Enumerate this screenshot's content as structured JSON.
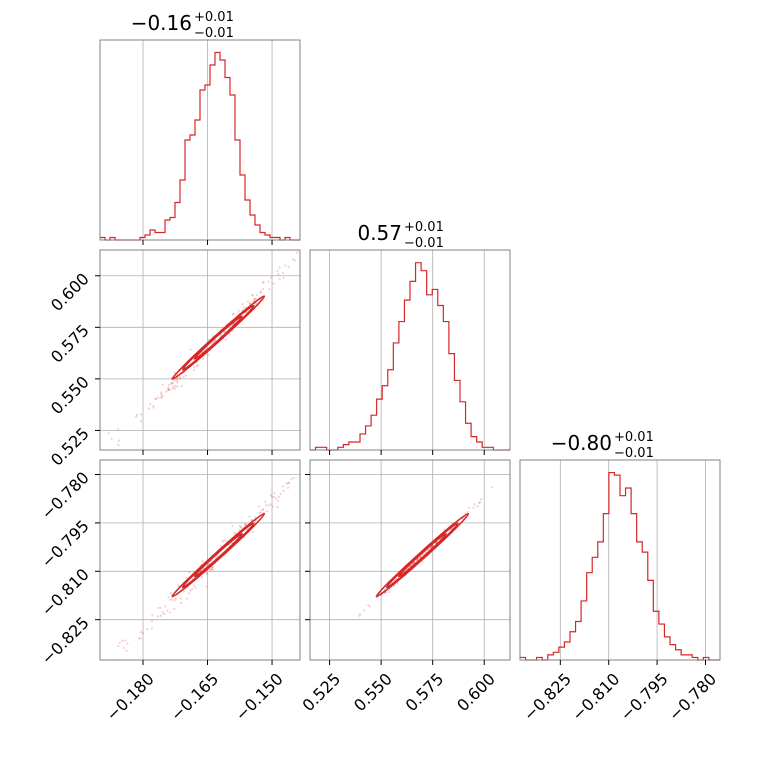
{
  "chart_data": {
    "type": "corner",
    "color": "#d62728",
    "parameters": [
      {
        "title": {
          "main": "−0.16",
          "sup": "+0.01",
          "sub": "−0.01"
        },
        "median": -0.1625,
        "range": [
          -0.19,
          -0.1435
        ],
        "ticks": [
          -0.18,
          -0.165,
          -0.15
        ],
        "tick_labels": [
          "−0.180",
          "−0.165",
          "−0.150"
        ],
        "hist_counts": [
          1,
          0,
          1,
          0,
          0,
          0,
          0,
          0,
          1,
          2,
          4,
          3,
          3,
          8,
          9,
          15,
          24,
          40,
          42,
          48,
          60,
          62,
          70,
          75,
          72,
          65,
          58,
          40,
          26,
          16,
          10,
          6,
          3,
          2,
          1,
          1,
          0,
          1,
          0,
          0
        ],
        "hist_max": 76
      },
      {
        "title": {
          "main": "0.57",
          "sup": "+0.01",
          "sub": "−0.01"
        },
        "median": 0.57,
        "range": [
          0.5155,
          0.6125
        ],
        "ticks": [
          0.525,
          0.55,
          0.575,
          0.6
        ],
        "tick_labels": [
          "0.525",
          "0.550",
          "0.575",
          "0.600"
        ],
        "hist_counts": [
          0,
          1,
          1,
          0,
          0,
          1,
          2,
          3,
          3,
          6,
          9,
          13,
          19,
          24,
          30,
          40,
          48,
          56,
          63,
          70,
          67,
          58,
          60,
          54,
          48,
          36,
          26,
          18,
          10,
          5,
          3,
          1,
          1,
          0,
          0,
          0
        ],
        "hist_max": 71
      },
      {
        "title": {
          "main": "−0.80",
          "sup": "+0.01",
          "sub": "−0.01"
        },
        "median": -0.805,
        "range": [
          -0.8375,
          -0.7755
        ],
        "ticks": [
          -0.825,
          -0.81,
          -0.795,
          -0.78
        ],
        "tick_labels": [
          "−0.825",
          "−0.810",
          "−0.795",
          "−0.780"
        ],
        "hist_counts": [
          1,
          0,
          0,
          1,
          0,
          2,
          3,
          5,
          7,
          11,
          15,
          23,
          34,
          40,
          46,
          57,
          73,
          72,
          64,
          67,
          57,
          46,
          42,
          31,
          19,
          14,
          9,
          6,
          4,
          2,
          2,
          1,
          0,
          1,
          0,
          0
        ],
        "hist_max": 74
      }
    ]
  }
}
